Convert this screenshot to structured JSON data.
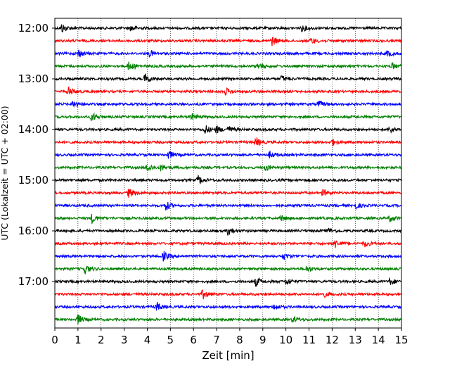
{
  "chart_data": {
    "type": "line",
    "title": "",
    "xlabel": "Zeit  [min]",
    "ylabel": "UTC (Lokalzeit = UTC + 02:00)",
    "xlim": [
      0,
      15
    ],
    "x_ticks": [
      "0",
      "1",
      "2",
      "3",
      "4",
      "5",
      "6",
      "7",
      "8",
      "9",
      "10",
      "11",
      "12",
      "13",
      "14",
      "15"
    ],
    "y_tick_labels": [
      "12:00",
      "13:00",
      "14:00",
      "15:00",
      "16:00",
      "17:00"
    ],
    "grid": {
      "x": true,
      "style": "dotted",
      "y": false
    },
    "trace_interval_minutes": 15,
    "trace_color_cycle": [
      "#000000",
      "#ff0000",
      "#0000ff",
      "#008000"
    ],
    "series": [
      {
        "start": "12:00",
        "color": "#000000",
        "events_min": [
          0.3,
          3.3,
          10.7
        ]
      },
      {
        "start": "12:15",
        "color": "#ff0000",
        "events_min": [
          9.4,
          11.1
        ]
      },
      {
        "start": "12:30",
        "color": "#0000ff",
        "events_min": [
          1.0,
          4.1,
          14.4
        ]
      },
      {
        "start": "12:45",
        "color": "#008000",
        "events_min": [
          3.2,
          8.8,
          14.6
        ]
      },
      {
        "start": "13:00",
        "color": "#000000",
        "events_min": [
          3.9,
          9.8
        ]
      },
      {
        "start": "13:15",
        "color": "#ff0000",
        "events_min": [
          0.6,
          7.4
        ]
      },
      {
        "start": "13:30",
        "color": "#0000ff",
        "events_min": [
          0.8,
          11.4
        ]
      },
      {
        "start": "13:45",
        "color": "#008000",
        "events_min": [
          1.6,
          5.9
        ]
      },
      {
        "start": "14:00",
        "color": "#000000",
        "events_min": [
          6.5,
          7.0,
          7.5,
          14.5
        ]
      },
      {
        "start": "14:15",
        "color": "#ff0000",
        "events_min": [
          8.7,
          12.0
        ]
      },
      {
        "start": "14:30",
        "color": "#0000ff",
        "events_min": [
          4.9,
          9.3
        ]
      },
      {
        "start": "14:45",
        "color": "#008000",
        "events_min": [
          4.0,
          4.6,
          9.1
        ]
      },
      {
        "start": "15:00",
        "color": "#000000",
        "events_min": [
          6.2
        ]
      },
      {
        "start": "15:15",
        "color": "#ff0000",
        "events_min": [
          3.2,
          11.6
        ]
      },
      {
        "start": "15:30",
        "color": "#0000ff",
        "events_min": [
          4.8,
          13.0
        ]
      },
      {
        "start": "15:45",
        "color": "#008000",
        "events_min": [
          1.6,
          9.8,
          14.5
        ]
      },
      {
        "start": "16:00",
        "color": "#000000",
        "events_min": [
          7.5,
          11.8
        ]
      },
      {
        "start": "16:15",
        "color": "#ff0000",
        "events_min": [
          12.1,
          13.4
        ]
      },
      {
        "start": "16:30",
        "color": "#0000ff",
        "events_min": [
          4.7,
          9.9
        ]
      },
      {
        "start": "16:45",
        "color": "#008000",
        "events_min": [
          1.3,
          10.9
        ]
      },
      {
        "start": "17:00",
        "color": "#000000",
        "events_min": [
          8.7,
          10.0,
          14.5
        ]
      },
      {
        "start": "17:15",
        "color": "#ff0000",
        "events_min": [
          6.4,
          11.6
        ]
      },
      {
        "start": "17:30",
        "color": "#0000ff",
        "events_min": [
          4.4,
          9.5
        ]
      },
      {
        "start": "17:45",
        "color": "#008000",
        "events_min": [
          1.0,
          10.3
        ]
      }
    ]
  }
}
